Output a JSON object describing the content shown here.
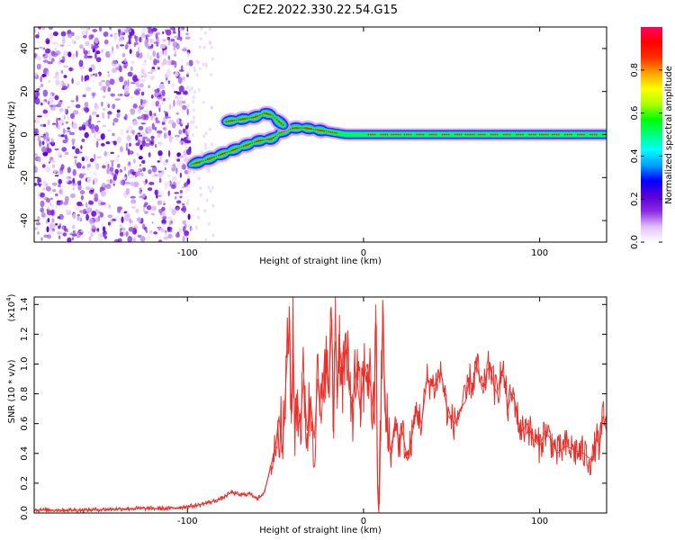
{
  "title": "C2E2.2022.330.22.54.G15",
  "chart_data": [
    {
      "type": "heatmap",
      "xlabel": "Height of straight line (km)",
      "ylabel": "Frequency (Hz)",
      "xlim": [
        -187,
        138
      ],
      "ylim": [
        -50,
        50
      ],
      "xticks": [
        -100,
        0,
        100
      ],
      "xtick_labels": [
        "-100",
        "0",
        "100"
      ],
      "yticks": [
        -40,
        -20,
        0,
        20,
        40
      ],
      "ytick_labels": [
        "-40",
        "-20",
        "0",
        "20",
        "40"
      ],
      "noise_region_x": [
        -187,
        -100
      ],
      "tracks": [
        {
          "x": [
            -98,
            -90,
            -80,
            -70,
            -60,
            -52,
            -47,
            -40,
            -33,
            -25,
            -18,
            -10,
            0,
            20,
            50,
            85,
            100,
            138
          ],
          "y": [
            -14,
            -12,
            -9,
            -6,
            -3,
            -2,
            1,
            3,
            3,
            2,
            1,
            0,
            0,
            0,
            0,
            0,
            0,
            0
          ]
        },
        {
          "x": [
            -78,
            -70,
            -62,
            -56,
            -52,
            -48,
            -45
          ],
          "y": [
            6,
            7,
            8,
            10,
            9,
            6,
            4
          ]
        }
      ],
      "colorbar": {
        "label": "Normalized spectral amplitude",
        "range": [
          0,
          1
        ],
        "ticks": [
          0.0,
          0.2,
          0.4,
          0.6,
          0.8
        ],
        "tick_labels": [
          "0.0",
          "0.2",
          "0.4",
          "0.6",
          "0.8"
        ],
        "colors": [
          "#ffffff",
          "#e0c0f8",
          "#8a2be2",
          "#5a00d8",
          "#0000ff",
          "#00a0ff",
          "#00ffff",
          "#00ff80",
          "#00ff00",
          "#b0ff00",
          "#ffff00",
          "#ffa000",
          "#ff3000",
          "#ff0000",
          "#ff0060"
        ]
      }
    },
    {
      "type": "line",
      "xlabel": "Height of straight line (km)",
      "ylabel": "SNR (10 * v/v)",
      "y_scale_label": "(x10",
      "y_scale_exp": "4",
      "y_scale_close": ")",
      "xlim": [
        -187,
        138
      ],
      "ylim": [
        0,
        1.45
      ],
      "xticks": [
        -100,
        0,
        100
      ],
      "xtick_labels": [
        "-100",
        "0",
        "100"
      ],
      "yticks": [
        0.0,
        0.2,
        0.4,
        0.6,
        0.8,
        1.0,
        1.2,
        1.4
      ],
      "ytick_labels": [
        "0.0",
        "0.2",
        "0.4",
        "0.6",
        "0.8",
        "1.0",
        "1.2",
        "1.4"
      ],
      "color": "#e8302a",
      "series": [
        {
          "x": [
            -187,
            -160,
            -130,
            -110,
            -95,
            -85,
            -80,
            -75,
            -70,
            -65,
            -60,
            -57,
            -55,
            -52,
            -50,
            -48,
            -46,
            -44,
            -42,
            -41,
            -40,
            -39,
            -38,
            -36,
            -34,
            -32,
            -30,
            -28,
            -26,
            -24,
            -22,
            -20,
            -18,
            -17,
            -16,
            -15,
            -14,
            -12,
            -10,
            -8,
            -6,
            -4,
            -2,
            0,
            2,
            4,
            6,
            7,
            8,
            9,
            10,
            11,
            12,
            14,
            16,
            18,
            20,
            22,
            25,
            28,
            30,
            33,
            36,
            40,
            44,
            48,
            52,
            55,
            58,
            60,
            62,
            64,
            66,
            68,
            70,
            72,
            74,
            76,
            78,
            80,
            82,
            84,
            86,
            88,
            90,
            93,
            96,
            100,
            103,
            106,
            110,
            115,
            120,
            125,
            130,
            132,
            134,
            136,
            138
          ],
          "y": [
            0.02,
            0.02,
            0.03,
            0.03,
            0.05,
            0.08,
            0.1,
            0.14,
            0.12,
            0.13,
            0.1,
            0.12,
            0.2,
            0.35,
            0.45,
            0.65,
            0.4,
            0.9,
            1.3,
            0.6,
            1.2,
            0.5,
            0.8,
            0.6,
            0.9,
            0.55,
            0.75,
            0.5,
            0.9,
            0.6,
            1.1,
            0.8,
            1.3,
            0.5,
            1.45,
            0.7,
            1.2,
            0.9,
            1.1,
            0.8,
            0.75,
            0.95,
            0.7,
            0.9,
            1.0,
            0.85,
            0.6,
            1.4,
            0.2,
            0.06,
            0.8,
            1.4,
            0.7,
            0.5,
            0.4,
            0.65,
            0.45,
            0.55,
            0.35,
            0.55,
            0.7,
            0.6,
            0.9,
            0.85,
            0.95,
            0.65,
            0.6,
            0.7,
            0.75,
            0.9,
            0.85,
            1.0,
            0.9,
            0.8,
            0.95,
            1.0,
            0.85,
            0.8,
            0.95,
            0.9,
            0.7,
            0.8,
            0.75,
            0.6,
            0.55,
            0.6,
            0.5,
            0.45,
            0.55,
            0.5,
            0.4,
            0.45,
            0.42,
            0.4,
            0.35,
            0.5,
            0.45,
            0.65,
            0.55
          ]
        }
      ]
    }
  ]
}
